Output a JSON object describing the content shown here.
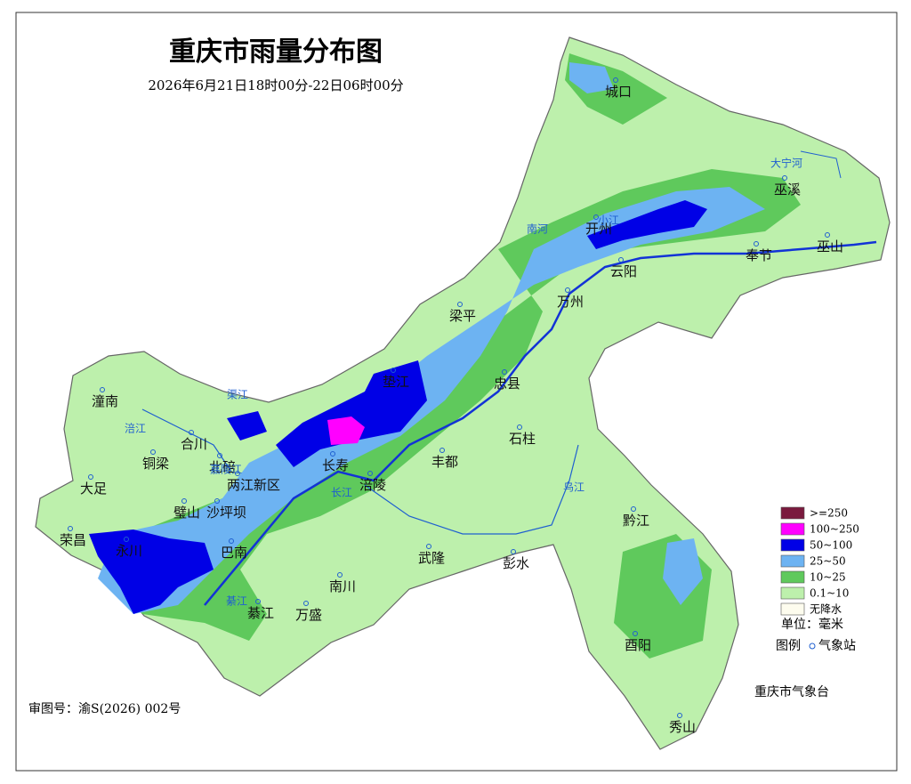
{
  "header": {
    "title": "重庆市雨量分布图",
    "subtitle": "2026年6月21日18时00分-22日06时00分"
  },
  "places": [
    "城口",
    "巫溪",
    "开州",
    "云阳",
    "奉节",
    "巫山",
    "万州",
    "梁平",
    "垫江",
    "忠县",
    "石柱",
    "丰都",
    "涪陵",
    "长寿",
    "潼南",
    "合川",
    "铜梁",
    "大足",
    "北碚",
    "两江新区",
    "璧山",
    "沙坪坝",
    "巴南",
    "永川",
    "荣昌",
    "綦江",
    "万盛",
    "南川",
    "武隆",
    "彭水",
    "黔江",
    "酉阳",
    "秀山"
  ],
  "rivers": [
    "大宁河",
    "南河",
    "小江",
    "涪江",
    "渠江",
    "嘉陵江",
    "长江",
    "乌江",
    "綦江"
  ],
  "legend": {
    "items": [
      {
        "label": ">=250",
        "color": "#7a1a3e"
      },
      {
        "label": "100~250",
        "color": "#ff00ff"
      },
      {
        "label": "50~100",
        "color": "#0000e6"
      },
      {
        "label": "25~50",
        "color": "#6db3f2"
      },
      {
        "label": "10~25",
        "color": "#5fc95c"
      },
      {
        "label": "0.1~10",
        "color": "#bdf0ac"
      },
      {
        "label": "无降水",
        "color": "#fdfcee"
      }
    ],
    "unit": "单位：毫米",
    "symbol_title": "图例",
    "station": "气象站"
  },
  "credit": "重庆市气象台",
  "approval": "审图号：渝S(2026) 002号"
}
